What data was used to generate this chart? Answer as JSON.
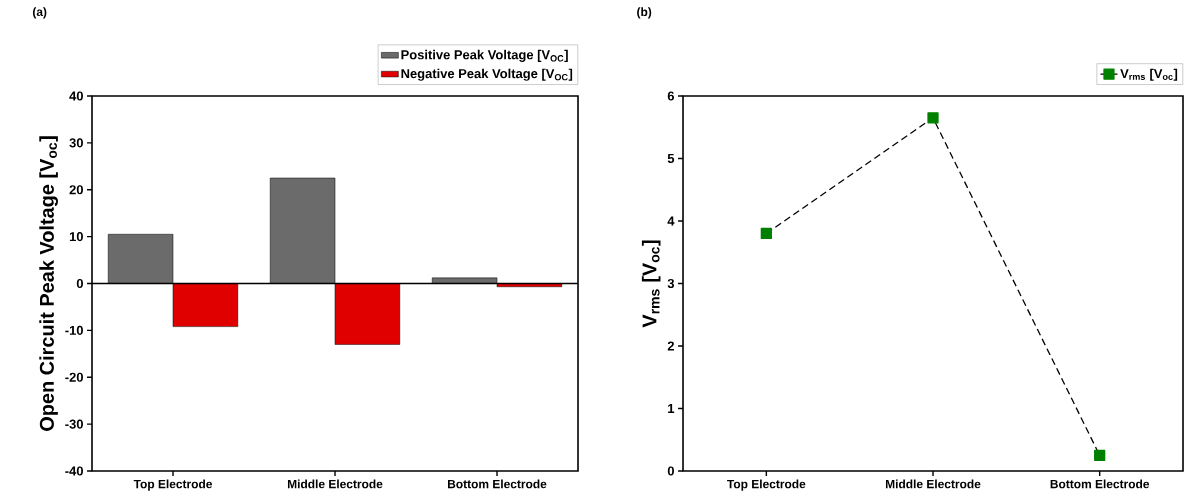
{
  "chart_data": [
    {
      "type": "bar",
      "title": "(a)",
      "ylabel": "Open Circuit Peak Voltage [V$_{oc}$]",
      "categories": [
        "Top Electrode",
        "Middle Electrode",
        "Bottom Electrode"
      ],
      "series": [
        {
          "name": "Positive Peak Voltage [V$_{OC}$]",
          "color": "#6b6b6b",
          "values": [
            10.5,
            22.5,
            1.2
          ]
        },
        {
          "name": "Negative Peak Voltage [V$_{OC}$]",
          "color": "#e00000",
          "values": [
            -9.2,
            -13,
            -0.7
          ]
        }
      ],
      "ylim": [
        -40,
        40
      ],
      "yticks": [
        -40,
        -30,
        -20,
        -10,
        0,
        10,
        20,
        30,
        40
      ],
      "legend": "top right"
    },
    {
      "type": "line",
      "title": "(b)",
      "ylabel": "V$_{rms}$ [V$_{oc}$]",
      "categories": [
        "Top Electrode",
        "Middle Electrode",
        "Bottom Electrode"
      ],
      "series": [
        {
          "name": "V$_{rms}$ [V$_{oc}$]",
          "color": "#008000",
          "values": [
            3.8,
            5.65,
            0.25
          ]
        }
      ],
      "marker": "square",
      "line_style": "dashed",
      "ylim": [
        0,
        6
      ],
      "yticks": [
        0,
        1,
        2,
        3,
        4,
        5,
        6
      ],
      "legend": "top right"
    }
  ]
}
